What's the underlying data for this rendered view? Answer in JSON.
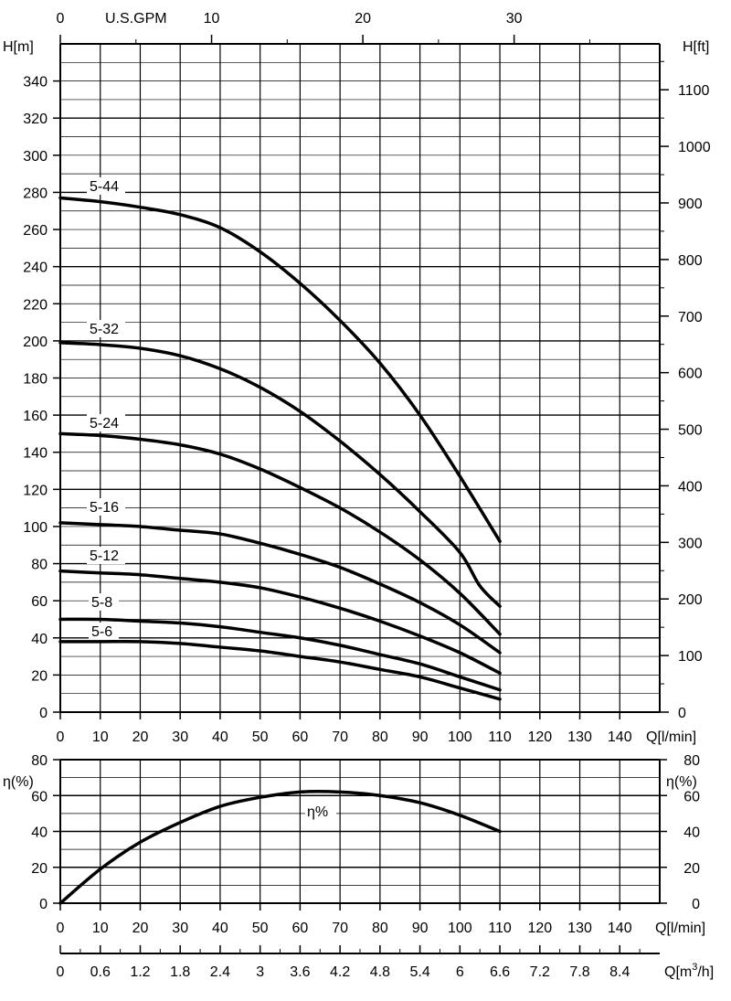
{
  "chart_data": [
    {
      "type": "line",
      "top_axis": {
        "label": "U.S.GPM",
        "ticks": [
          "0",
          "10",
          "20",
          "30"
        ]
      },
      "x": {
        "label": "Q[l/min]",
        "ticks": [
          "0",
          "10",
          "20",
          "30",
          "40",
          "50",
          "60",
          "70",
          "80",
          "90",
          "100",
          "110",
          "120",
          "130",
          "140"
        ],
        "lim": [
          0,
          150
        ]
      },
      "y": {
        "label": "H[m]",
        "ticks": [
          "0",
          "20",
          "40",
          "60",
          "80",
          "100",
          "120",
          "140",
          "160",
          "180",
          "200",
          "220",
          "240",
          "260",
          "280",
          "300",
          "320",
          "340"
        ],
        "lim": [
          0,
          360
        ]
      },
      "y_right": {
        "label": "H[ft]",
        "ticks": [
          "0",
          "100",
          "200",
          "300",
          "400",
          "500",
          "600",
          "700",
          "800",
          "900",
          "1000",
          "1100"
        ]
      },
      "grid": true,
      "series": [
        {
          "name": "5-44",
          "x": [
            0,
            10,
            20,
            30,
            40,
            50,
            60,
            70,
            80,
            90,
            100,
            110
          ],
          "values": [
            277,
            275,
            272,
            268,
            261,
            248,
            231,
            211,
            188,
            160,
            127,
            92
          ]
        },
        {
          "name": "5-32",
          "x": [
            0,
            10,
            20,
            30,
            40,
            50,
            60,
            70,
            80,
            90,
            100,
            105,
            110
          ],
          "values": [
            199,
            198,
            196,
            192,
            185,
            175,
            162,
            146,
            128,
            108,
            86,
            68,
            57
          ]
        },
        {
          "name": "5-24",
          "x": [
            0,
            10,
            20,
            30,
            40,
            50,
            60,
            70,
            80,
            90,
            100,
            110
          ],
          "values": [
            150,
            149,
            147,
            144,
            139,
            131,
            121,
            110,
            97,
            82,
            64,
            42
          ]
        },
        {
          "name": "5-16",
          "x": [
            0,
            10,
            20,
            30,
            40,
            50,
            60,
            70,
            80,
            90,
            100,
            110
          ],
          "values": [
            102,
            101,
            100,
            98,
            96,
            91,
            85,
            78,
            69,
            59,
            47,
            32
          ]
        },
        {
          "name": "5-12",
          "x": [
            0,
            10,
            20,
            30,
            40,
            50,
            60,
            70,
            80,
            90,
            100,
            110
          ],
          "values": [
            76,
            75,
            74,
            72,
            70,
            67,
            62,
            56,
            49,
            41,
            32,
            21
          ]
        },
        {
          "name": "5-8",
          "x": [
            0,
            10,
            20,
            30,
            40,
            50,
            60,
            70,
            80,
            90,
            100,
            110
          ],
          "values": [
            50,
            50,
            49,
            48,
            46,
            43,
            40,
            36,
            31,
            26,
            19,
            12
          ]
        },
        {
          "name": "5-6",
          "x": [
            0,
            10,
            20,
            30,
            40,
            50,
            60,
            70,
            80,
            90,
            100,
            110
          ],
          "values": [
            38,
            38,
            38,
            37,
            35,
            33,
            30,
            27,
            23,
            19,
            13,
            7
          ]
        }
      ]
    },
    {
      "type": "line",
      "x": {
        "label": "Q[l/min]",
        "ticks": [
          "0",
          "10",
          "20",
          "30",
          "40",
          "50",
          "60",
          "70",
          "80",
          "90",
          "100",
          "110",
          "120",
          "130",
          "140"
        ],
        "lim": [
          0,
          150
        ]
      },
      "y": {
        "label": "η(%)",
        "ticks": [
          "0",
          "20",
          "40",
          "60",
          "80"
        ],
        "lim": [
          0,
          80
        ]
      },
      "y_right": {
        "label": "η(%)",
        "ticks": [
          "0",
          "20",
          "40",
          "60",
          "80"
        ]
      },
      "bottom_axis": {
        "label_main": "Q[m",
        "label_sup": "3",
        "label_end": "/h]",
        "ticks": [
          "0",
          "0.6",
          "1.2",
          "1.8",
          "2.4",
          "3",
          "3.6",
          "4.2",
          "4.8",
          "5.4",
          "6",
          "6.6",
          "7.2",
          "7.8",
          "8.4"
        ]
      },
      "grid": true,
      "series": [
        {
          "name": "η%",
          "x": [
            0,
            10,
            20,
            30,
            40,
            50,
            60,
            70,
            80,
            90,
            100,
            110
          ],
          "values": [
            0,
            19,
            34,
            45,
            54,
            59,
            62,
            62,
            60,
            56,
            49,
            40
          ]
        }
      ]
    }
  ]
}
